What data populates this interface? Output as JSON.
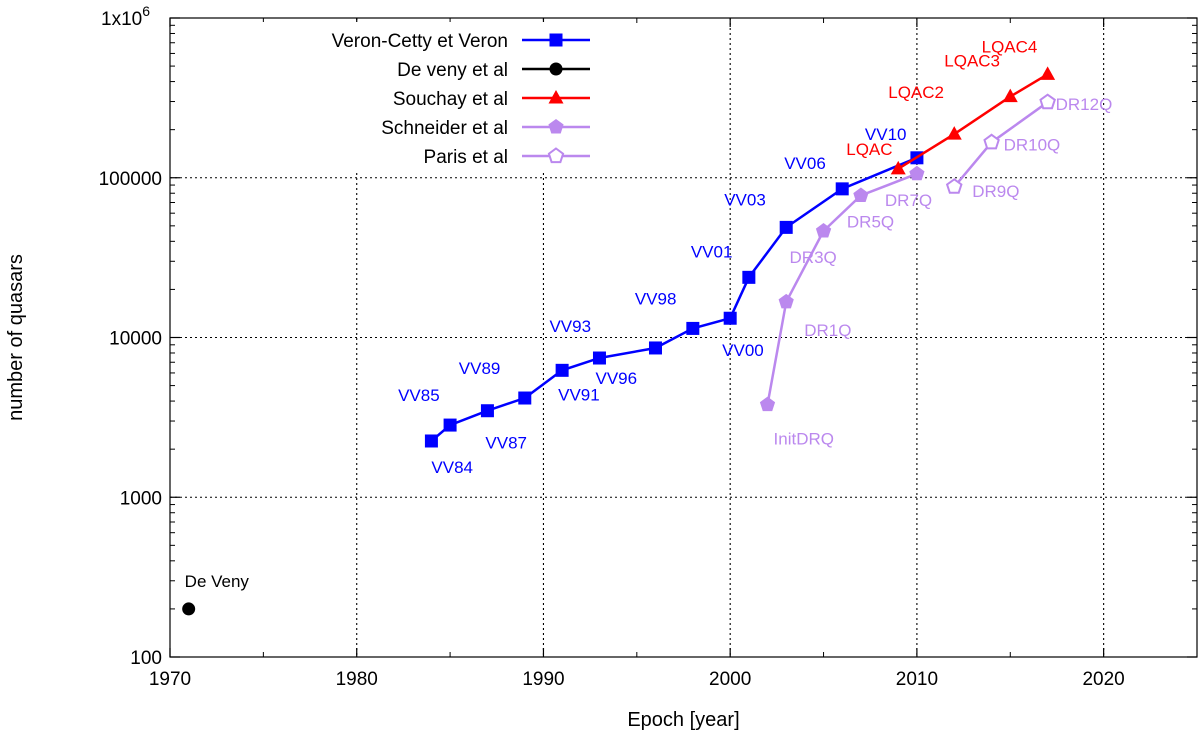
{
  "chart_data": {
    "type": "line",
    "xlabel": "Epoch [year]",
    "ylabel": "number of quasars",
    "xlim": [
      1970,
      2025
    ],
    "ylim": [
      100,
      1000000
    ],
    "y_scale": "log",
    "grid": true,
    "legend_position": "top-left",
    "x_ticks": [
      "1970",
      "1980",
      "1990",
      "2000",
      "2010",
      "2020"
    ],
    "y_ticks": [
      {
        "value": 100,
        "label": "100"
      },
      {
        "value": 1000,
        "label": "1000"
      },
      {
        "value": 10000,
        "label": "10000"
      },
      {
        "value": 100000,
        "label": "100000"
      },
      {
        "value": 1000000,
        "label": "1x10"
      }
    ],
    "y_top_exponent": "6",
    "series": [
      {
        "name": "Veron-Cetty et Veron",
        "color": "#0000ff",
        "marker": "filled-square",
        "line": true,
        "points": [
          {
            "x": 1984,
            "y": 2250,
            "label": "VV84"
          },
          {
            "x": 1985,
            "y": 2830,
            "label": "VV85"
          },
          {
            "x": 1987,
            "y": 3480,
            "label": "VV87"
          },
          {
            "x": 1989,
            "y": 4180,
            "label": "VV89"
          },
          {
            "x": 1991,
            "y": 6230,
            "label": "VV91"
          },
          {
            "x": 1993,
            "y": 7440,
            "label": "VV93"
          },
          {
            "x": 1996,
            "y": 8600,
            "label": "VV96"
          },
          {
            "x": 1998,
            "y": 11400,
            "label": "VV98"
          },
          {
            "x": 2000,
            "y": 13200,
            "label": "VV00"
          },
          {
            "x": 2001,
            "y": 23800,
            "label": "VV01"
          },
          {
            "x": 2003,
            "y": 48900,
            "label": "VV03"
          },
          {
            "x": 2006,
            "y": 85200,
            "label": "VV06"
          },
          {
            "x": 2010,
            "y": 133300,
            "label": "VV10"
          }
        ]
      },
      {
        "name": "De veny et al",
        "color": "#000000",
        "marker": "filled-circle",
        "line": false,
        "points": [
          {
            "x": 1971,
            "y": 200,
            "label": "De Veny"
          }
        ]
      },
      {
        "name": "Souchay et al",
        "color": "#ff0000",
        "marker": "filled-triangle",
        "line": true,
        "points": [
          {
            "x": 2009,
            "y": 113700,
            "label": "LQAC"
          },
          {
            "x": 2012,
            "y": 187500,
            "label": "LQAC2"
          },
          {
            "x": 2015,
            "y": 321900,
            "label": "LQAC3"
          },
          {
            "x": 2017,
            "y": 444000,
            "label": "LQAC4"
          }
        ]
      },
      {
        "name": "Schneider et al",
        "color": "#bb88ee",
        "marker": "filled-pentagon",
        "line": true,
        "points": [
          {
            "x": 2002,
            "y": 3800,
            "label": "InitDRQ"
          },
          {
            "x": 2003,
            "y": 16700,
            "label": "DR1Q"
          },
          {
            "x": 2005,
            "y": 46400,
            "label": "DR3Q"
          },
          {
            "x": 2007,
            "y": 77400,
            "label": "DR5Q"
          },
          {
            "x": 2010,
            "y": 105800,
            "label": "DR7Q"
          }
        ]
      },
      {
        "name": "Paris et al",
        "color": "#bb88ee",
        "marker": "open-pentagon",
        "line": true,
        "points": [
          {
            "x": 2012,
            "y": 87800,
            "label": "DR9Q"
          },
          {
            "x": 2014,
            "y": 166600,
            "label": "DR10Q"
          },
          {
            "x": 2017,
            "y": 297300,
            "label": "DR12Q"
          }
        ]
      }
    ]
  }
}
